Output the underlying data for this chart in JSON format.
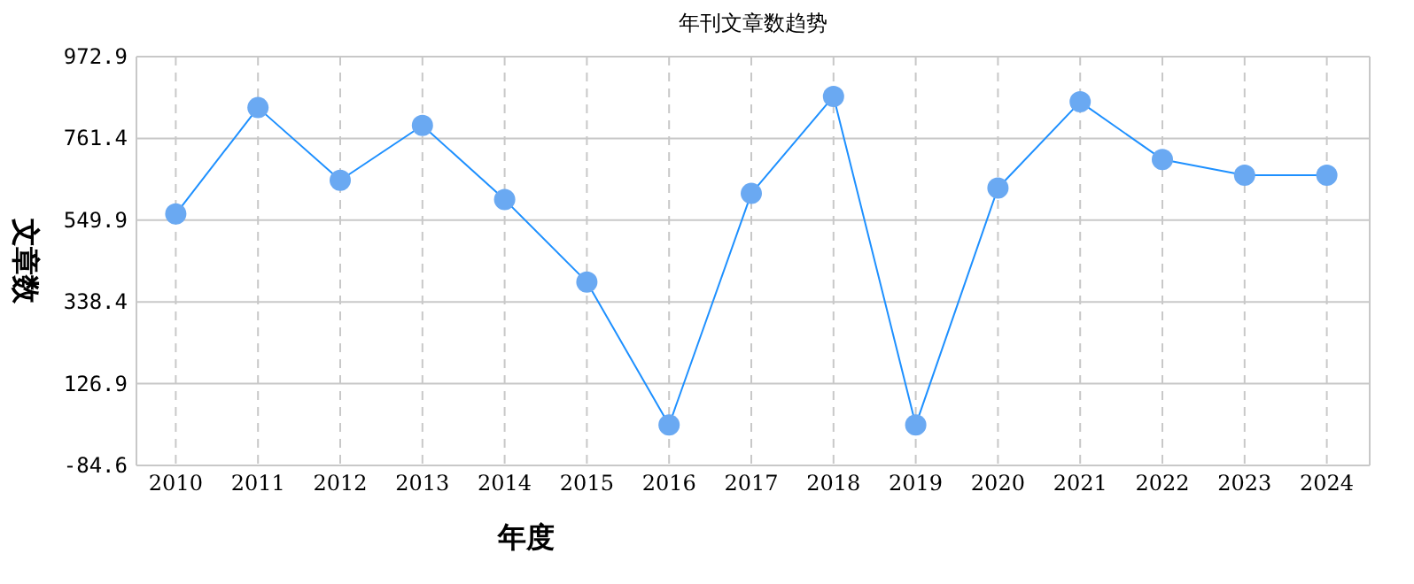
{
  "chart_data": {
    "type": "line",
    "title": "年刊文章数趋势",
    "xlabel": "年度",
    "ylabel": "文章数",
    "categories": [
      "2010",
      "2011",
      "2012",
      "2013",
      "2014",
      "2015",
      "2016",
      "2017",
      "2018",
      "2019",
      "2020",
      "2021",
      "2022",
      "2023",
      "2024"
    ],
    "series": [
      {
        "color": "#1e90ff",
        "values": [
          566,
          841,
          653,
          795,
          603,
          390,
          20,
          619,
          870,
          20,
          633,
          856,
          707,
          666,
          666
        ]
      }
    ],
    "marker": "circle",
    "line_style": "solid",
    "grid": true,
    "ylim": [
      -84.6,
      972.9
    ],
    "yticks": [
      {
        "value": -84.6,
        "label": "-84.6"
      },
      {
        "value": 126.9,
        "label": "126.9"
      },
      {
        "value": 338.4,
        "label": "338.4"
      },
      {
        "value": 549.9,
        "label": "549.9"
      },
      {
        "value": 761.4,
        "label": "761.4"
      },
      {
        "value": 972.9,
        "label": "972.9"
      }
    ]
  }
}
